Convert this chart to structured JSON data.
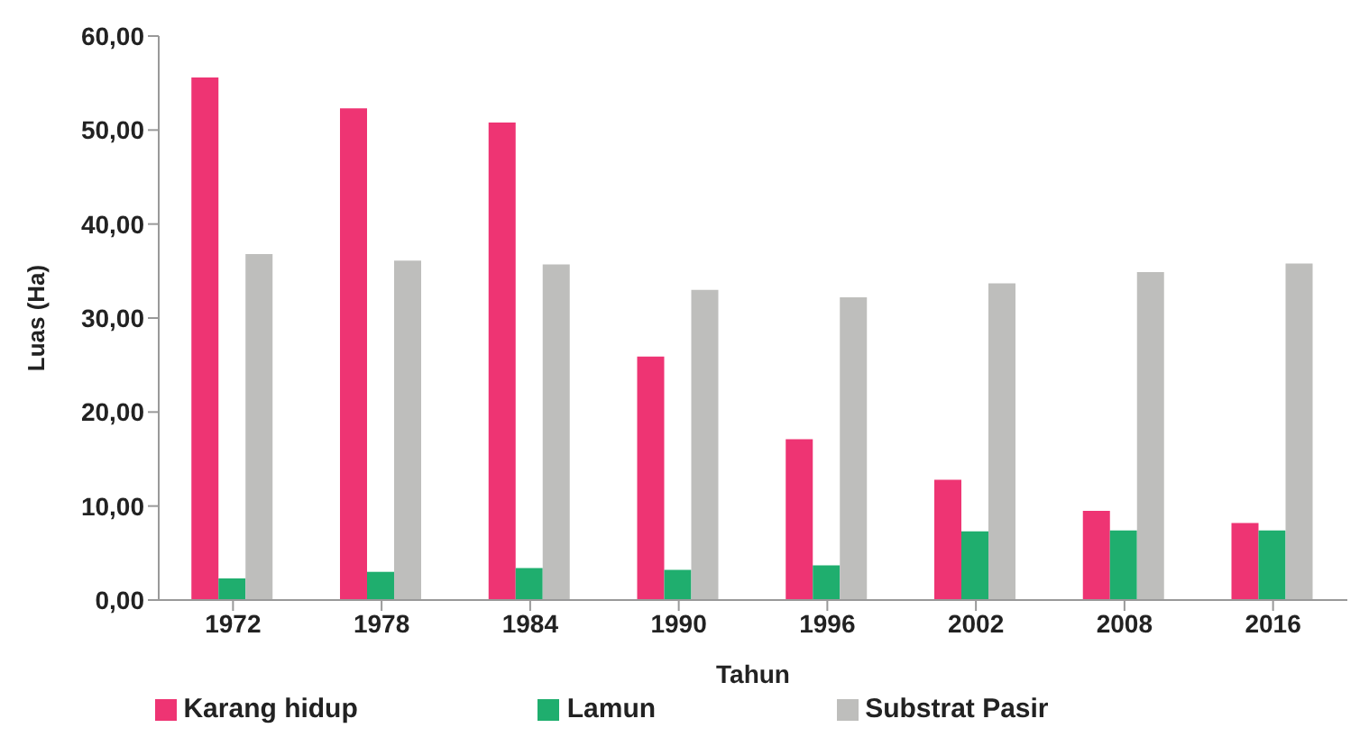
{
  "chart_data": {
    "type": "bar",
    "xlabel": "Tahun",
    "ylabel": "Luas (Ha)",
    "categories": [
      "1972",
      "1978",
      "1984",
      "1990",
      "1996",
      "2002",
      "2008",
      "2016"
    ],
    "series": [
      {
        "name": "Karang hidup",
        "color": "#ee3473",
        "values": [
          55.6,
          52.3,
          50.8,
          25.9,
          17.1,
          12.8,
          9.5,
          8.2
        ]
      },
      {
        "name": "Lamun",
        "color": "#1fae6e",
        "values": [
          2.3,
          3.0,
          3.4,
          3.2,
          3.7,
          7.3,
          7.4,
          7.4
        ]
      },
      {
        "name": "Substrat Pasir",
        "color": "#bebebc",
        "values": [
          36.8,
          36.1,
          35.7,
          33.0,
          32.2,
          33.7,
          34.9,
          35.8
        ]
      }
    ],
    "ylim": [
      0,
      60
    ],
    "yticks": [
      {
        "value": 0,
        "label": "0,00"
      },
      {
        "value": 10,
        "label": "10,00"
      },
      {
        "value": 20,
        "label": "20,00"
      },
      {
        "value": 30,
        "label": "30,00"
      },
      {
        "value": 40,
        "label": "40,00"
      },
      {
        "value": 50,
        "label": "50,00"
      },
      {
        "value": 60,
        "label": "60,00"
      }
    ],
    "grid": false,
    "legend": "bottom"
  }
}
